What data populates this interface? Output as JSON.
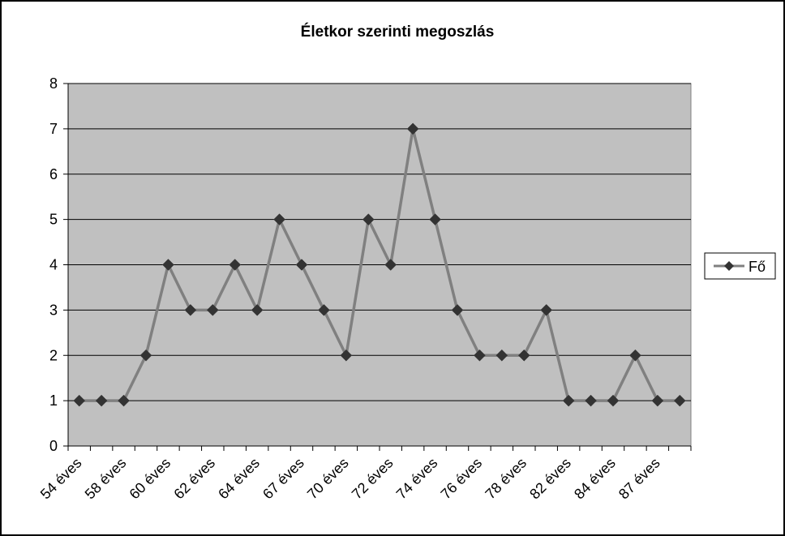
{
  "chart_data": {
    "type": "line",
    "title": "Életkor szerinti megoszlás",
    "xlabel": "",
    "ylabel": "",
    "ylim": [
      0,
      8
    ],
    "yticks": [
      0,
      1,
      2,
      3,
      4,
      5,
      6,
      7,
      8
    ],
    "grid": true,
    "legend_position": "right",
    "plot_background": "#c0c0c0",
    "line_color": "#808080",
    "marker_color": "#333333",
    "categories": [
      "54 éves",
      "",
      "58 éves",
      "",
      "60 éves",
      "",
      "62 éves",
      "",
      "64 éves",
      "",
      "67 éves",
      "",
      "70 éves",
      "",
      "72 éves",
      "",
      "74 éves",
      "",
      "76 éves",
      "",
      "78 éves",
      "",
      "82 éves",
      "",
      "84 éves",
      "",
      "87 éves",
      ""
    ],
    "series": [
      {
        "name": "Fő",
        "values": [
          1,
          1,
          1,
          2,
          4,
          3,
          3,
          4,
          3,
          5,
          4,
          3,
          2,
          5,
          4,
          7,
          5,
          3,
          2,
          2,
          2,
          3,
          1,
          1,
          1,
          2,
          1,
          1
        ]
      }
    ]
  }
}
